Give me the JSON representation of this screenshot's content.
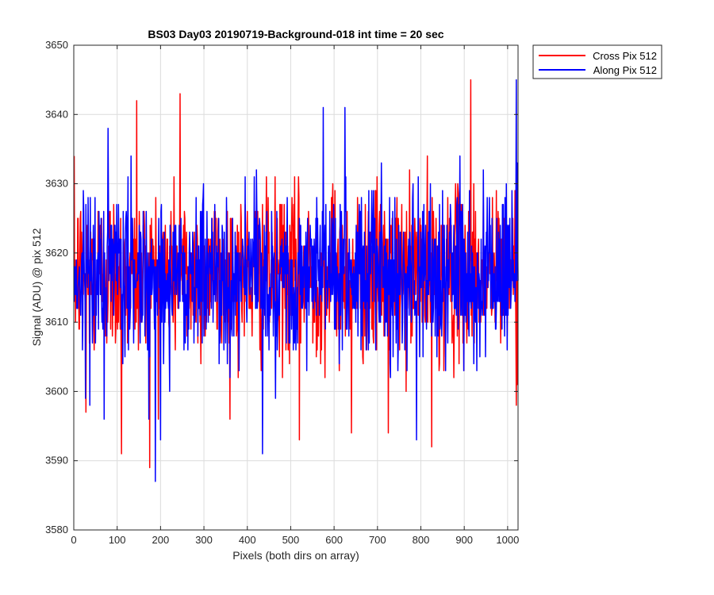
{
  "chart_data": {
    "type": "line",
    "title": "BS03 Day03 20190719-Background-018 int time = 20 sec",
    "xlabel": "Pixels (both dirs on array)",
    "ylabel": "Signal (ADU) @ pix 512",
    "xlim": [
      0,
      1024
    ],
    "ylim": [
      3580,
      3650
    ],
    "x_ticks": [
      "0",
      "100",
      "200",
      "300",
      "400",
      "500",
      "600",
      "700",
      "800",
      "900",
      "1000"
    ],
    "y_ticks": [
      "3580",
      "3590",
      "3600",
      "3610",
      "3620",
      "3630",
      "3640",
      "3650"
    ],
    "grid": true,
    "legend_position": "outside-top-right",
    "series": [
      {
        "name": "Cross Pix 512",
        "color": "#ff0000",
        "x_start": 1,
        "x_end": 1024,
        "mean": 3617,
        "noise_std": 6,
        "highlights": [
          {
            "x": 28,
            "y": 3597
          },
          {
            "x": 110,
            "y": 3591
          },
          {
            "x": 145,
            "y": 3642
          },
          {
            "x": 175,
            "y": 3589
          },
          {
            "x": 245,
            "y": 3643
          },
          {
            "x": 520,
            "y": 3593
          },
          {
            "x": 640,
            "y": 3594
          },
          {
            "x": 725,
            "y": 3594
          },
          {
            "x": 825,
            "y": 3592
          },
          {
            "x": 915,
            "y": 3645
          },
          {
            "x": 1020,
            "y": 3598
          }
        ]
      },
      {
        "name": "Along Pix 512",
        "color": "#0000ff",
        "x_start": 1,
        "x_end": 1024,
        "mean": 3617,
        "noise_std": 6,
        "highlights": [
          {
            "x": 70,
            "y": 3596
          },
          {
            "x": 188,
            "y": 3587
          },
          {
            "x": 200,
            "y": 3593
          },
          {
            "x": 435,
            "y": 3591
          },
          {
            "x": 575,
            "y": 3641
          },
          {
            "x": 625,
            "y": 3641
          },
          {
            "x": 790,
            "y": 3593
          },
          {
            "x": 1020,
            "y": 3645
          }
        ]
      }
    ]
  },
  "colors": {
    "axis": "#262626",
    "grid": "#dcdcdc",
    "background": "#ffffff"
  }
}
